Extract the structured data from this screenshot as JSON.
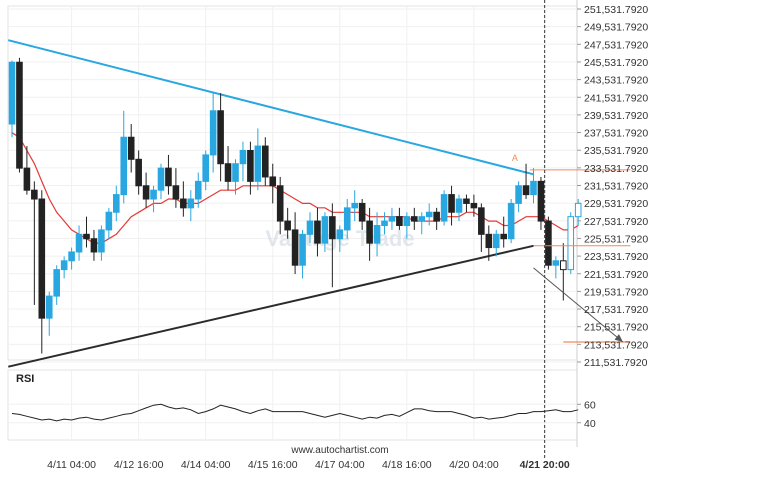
{
  "chart_data": {
    "type": "candlestick",
    "title": "",
    "watermark": "Vantage Trade",
    "footer": "www.autochartist.com",
    "ylim": [
      211531.792,
      251531.792
    ],
    "y_ticks": [
      "251,531.7920",
      "249,531.7920",
      "247,531.7920",
      "245,531.7920",
      "243,531.7920",
      "241,531.7920",
      "239,531.7920",
      "237,531.7920",
      "235,531.7920",
      "233,531.7920",
      "231,531.7920",
      "229,531.7920",
      "227,531.7920",
      "225,531.7920",
      "223,531.7920",
      "221,531.7920",
      "219,531.7920",
      "217,531.7920",
      "215,531.7920",
      "213,531.7920",
      "211,531.7920"
    ],
    "y_tick_values": [
      251531.792,
      249531.792,
      247531.792,
      245531.792,
      243531.792,
      241531.792,
      239531.792,
      237531.792,
      235531.792,
      233531.792,
      231531.792,
      229531.792,
      227531.792,
      225531.792,
      223531.792,
      221531.792,
      219531.792,
      217531.792,
      215531.792,
      213531.792,
      211531.792
    ],
    "x_ticks": [
      "4/11 04:00",
      "4/12 16:00",
      "4/14 04:00",
      "4/15 16:00",
      "4/17 04:00",
      "4/18 16:00",
      "4/20 04:00",
      "4/21 20:00"
    ],
    "x_tick_index": [
      8,
      17,
      26,
      35,
      44,
      53,
      62,
      71.5
    ],
    "highlight_tick": "4/21 20:00",
    "candles": [
      [
        238500,
        245700,
        237000,
        245500
      ],
      [
        245500,
        246000,
        233000,
        233500
      ],
      [
        233500,
        236000,
        230500,
        231000
      ],
      [
        231000,
        232000,
        218000,
        230000
      ],
      [
        230000,
        231000,
        212500,
        216500
      ],
      [
        216500,
        219500,
        214500,
        219000
      ],
      [
        219000,
        222500,
        218000,
        222000
      ],
      [
        222000,
        223500,
        221000,
        223000
      ],
      [
        223000,
        224500,
        222000,
        224000
      ],
      [
        224000,
        227000,
        223000,
        226000
      ],
      [
        226000,
        228000,
        224500,
        225500
      ],
      [
        225500,
        226500,
        223000,
        224000
      ],
      [
        224000,
        227000,
        223000,
        226500
      ],
      [
        226500,
        229000,
        225500,
        228500
      ],
      [
        228500,
        231500,
        227500,
        230500
      ],
      [
        230500,
        240000,
        229500,
        237000
      ],
      [
        237000,
        238500,
        233000,
        234500
      ],
      [
        234500,
        235500,
        230500,
        231500
      ],
      [
        231500,
        233000,
        229000,
        230000
      ],
      [
        230000,
        231500,
        228500,
        231000
      ],
      [
        231000,
        234000,
        230000,
        233500
      ],
      [
        233500,
        235000,
        230500,
        231500
      ],
      [
        231500,
        233500,
        229000,
        230000
      ],
      [
        230000,
        232000,
        228000,
        229000
      ],
      [
        229000,
        231000,
        227500,
        230000
      ],
      [
        230000,
        233000,
        229000,
        232000
      ],
      [
        232000,
        235500,
        231000,
        235000
      ],
      [
        235000,
        242000,
        233000,
        240000
      ],
      [
        240000,
        242000,
        232000,
        234000
      ],
      [
        234000,
        236000,
        231000,
        232000
      ],
      [
        232000,
        234500,
        230500,
        234000
      ],
      [
        234000,
        236500,
        232000,
        235500
      ],
      [
        235500,
        236500,
        230500,
        232000
      ],
      [
        232000,
        238000,
        231000,
        236000
      ],
      [
        236000,
        237000,
        231500,
        232500
      ],
      [
        232500,
        234000,
        229500,
        231500
      ],
      [
        231500,
        232500,
        226000,
        227500
      ],
      [
        227500,
        229000,
        225500,
        226500
      ],
      [
        226500,
        228500,
        221500,
        222500
      ],
      [
        222500,
        226500,
        221000,
        226000
      ],
      [
        226000,
        228500,
        225000,
        227500
      ],
      [
        227500,
        229000,
        223500,
        225000
      ],
      [
        225000,
        228500,
        224000,
        228000
      ],
      [
        228000,
        229500,
        220000,
        225500
      ],
      [
        225500,
        227000,
        224000,
        226500
      ],
      [
        226500,
        230000,
        225500,
        229000
      ],
      [
        229000,
        231000,
        227500,
        229500
      ],
      [
        229500,
        230000,
        226500,
        227500
      ],
      [
        227500,
        229000,
        223000,
        225000
      ],
      [
        225000,
        228500,
        223500,
        227000
      ],
      [
        227000,
        228500,
        226000,
        227500
      ],
      [
        227500,
        229000,
        226500,
        228000
      ],
      [
        228000,
        229000,
        226500,
        227000
      ],
      [
        227000,
        228500,
        225500,
        228000
      ],
      [
        228000,
        229000,
        226500,
        227500
      ],
      [
        227500,
        228500,
        226000,
        228000
      ],
      [
        228000,
        229500,
        227000,
        228500
      ],
      [
        228500,
        229000,
        226500,
        227500
      ],
      [
        227500,
        231000,
        227000,
        230500
      ],
      [
        230500,
        231500,
        227000,
        228500
      ],
      [
        228500,
        230500,
        227500,
        230000
      ],
      [
        230000,
        230500,
        228500,
        229500
      ],
      [
        229500,
        230500,
        228000,
        229000
      ],
      [
        229000,
        229500,
        224000,
        226000
      ],
      [
        226000,
        227000,
        223000,
        224500
      ],
      [
        224500,
        226500,
        223500,
        226000
      ],
      [
        226000,
        228000,
        224500,
        225500
      ],
      [
        225500,
        230000,
        225000,
        229500
      ],
      [
        229500,
        232000,
        228500,
        231500
      ],
      [
        231500,
        234000,
        230000,
        230500
      ],
      [
        230500,
        233500,
        229500,
        232000
      ],
      [
        232000,
        232500,
        226500,
        227500
      ],
      [
        227500,
        228000,
        222000,
        222500
      ],
      [
        222500,
        223500,
        221000,
        223000
      ],
      [
        223000,
        225000,
        218500,
        222000
      ],
      [
        222000,
        228500,
        221500,
        228000
      ],
      [
        228000,
        230000,
        227000,
        229500
      ]
    ],
    "ma_line": [
      237500,
      237000,
      235500,
      234000,
      232000,
      230000,
      228500,
      227500,
      226500,
      226000,
      225500,
      225000,
      225000,
      225500,
      226000,
      227000,
      228000,
      228500,
      229000,
      229500,
      229500,
      230000,
      230000,
      229500,
      229500,
      229500,
      230000,
      230500,
      231000,
      231000,
      231000,
      231500,
      231500,
      231500,
      231500,
      231500,
      231000,
      230500,
      230000,
      229500,
      229500,
      229000,
      229000,
      228500,
      228500,
      228500,
      228500,
      228500,
      228000,
      228000,
      228000,
      228000,
      228000,
      228000,
      227500,
      227500,
      227500,
      227500,
      228000,
      228000,
      228000,
      228500,
      228500,
      228000,
      227500,
      227500,
      227000,
      227000,
      227500,
      228000,
      228000,
      228000,
      227500,
      227000,
      226500,
      226500,
      227000
    ],
    "resistance_line": {
      "from": [
        -0.5,
        248000
      ],
      "to": [
        70,
        232800
      ]
    },
    "support_line": {
      "from": [
        -0.5,
        211000
      ],
      "to": [
        70,
        224700
      ]
    },
    "target_line": {
      "from": [
        69.5,
        233300
      ],
      "to": [
        83,
        233300
      ]
    },
    "breakout_level": {
      "from": [
        70,
        224700
      ],
      "to": [
        83,
        224700
      ]
    },
    "target_level": {
      "from": [
        74,
        213800
      ],
      "to": [
        83,
        213800
      ]
    },
    "projection_arrow": {
      "from": [
        70,
        222200
      ],
      "to": [
        82,
        213800
      ]
    },
    "pattern_marker": {
      "x": 67.5,
      "y": 234300,
      "label": "A"
    },
    "rsi": {
      "label": "RSI",
      "ticks": [
        "60",
        "40"
      ],
      "tick_values": [
        60,
        40
      ],
      "ylim": [
        30,
        70
      ],
      "values": [
        50,
        49,
        47,
        45,
        43,
        44,
        42,
        44,
        43,
        45,
        46,
        44,
        43,
        45,
        47,
        49,
        50,
        53,
        56,
        59,
        60,
        57,
        55,
        56,
        54,
        50,
        52,
        55,
        59,
        57,
        55,
        52,
        50,
        53,
        55,
        52,
        52,
        52,
        52,
        52,
        50,
        48,
        46,
        48,
        50,
        48,
        46,
        44,
        46,
        45,
        48,
        49,
        47,
        51,
        55,
        55,
        53,
        52,
        52,
        52,
        50,
        48,
        45,
        46,
        44,
        45,
        46,
        48,
        50,
        50,
        52,
        52,
        53,
        54,
        52,
        52,
        54
      ]
    }
  }
}
